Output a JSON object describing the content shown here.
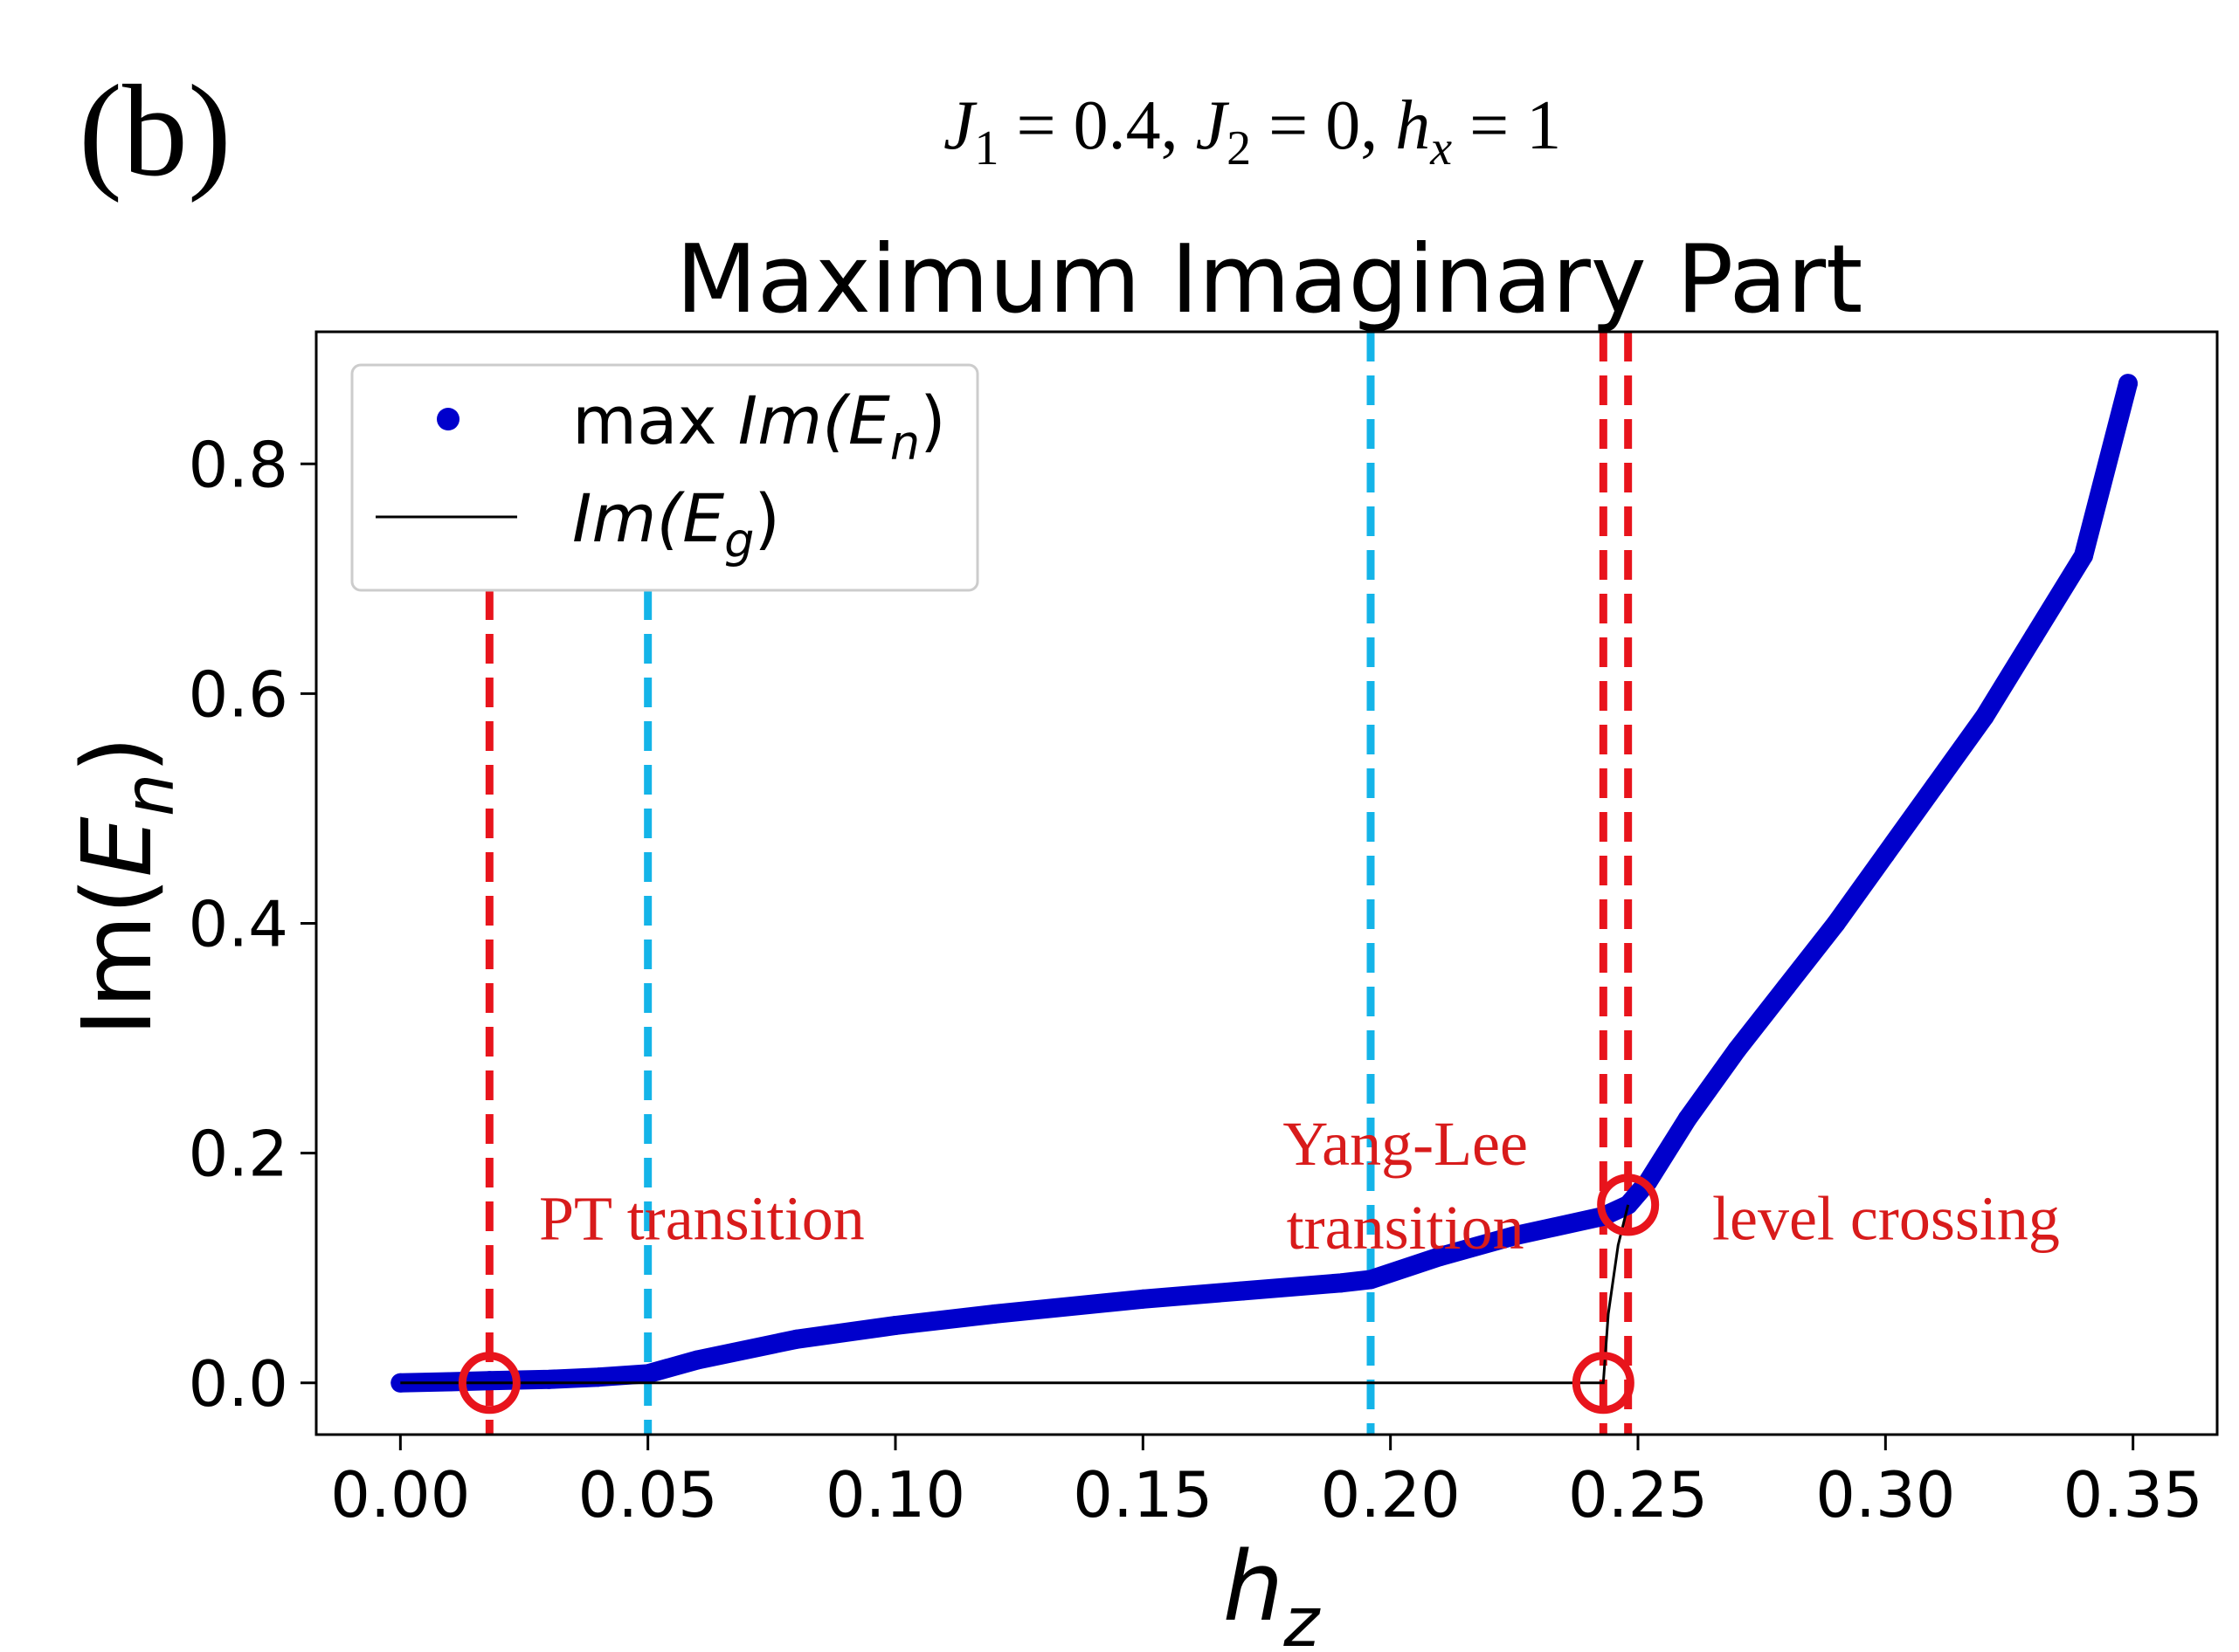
{
  "panel_label": "(b)",
  "params": {
    "j1": "J",
    "j1_sub": "1",
    "j1_val": " = 0.4, ",
    "j2": "J",
    "j2_sub": "2",
    "j2_val": " = 0, ",
    "hx": "h",
    "hx_sub": "x",
    "hx_val": " = 1"
  },
  "colors": {
    "series": "#0000cc",
    "line": "#000000",
    "red": "#e8141c",
    "cyan": "#14b4e8",
    "annotation": "#d81b1b"
  },
  "chart_data": {
    "type": "scatter",
    "title": "Maximum Imaginary Part",
    "xlabel": {
      "main": "h",
      "sub": "z"
    },
    "ylabel": {
      "main": "Im(",
      "letter": "E",
      "sub": "n",
      "close": ")"
    },
    "xlim": [
      -0.017,
      0.367
    ],
    "ylim": [
      -0.045,
      0.915
    ],
    "xticks": [
      0.0,
      0.05,
      0.1,
      0.15,
      0.2,
      0.25,
      0.3,
      0.35
    ],
    "xtick_labels": [
      "0.00",
      "0.05",
      "0.10",
      "0.15",
      "0.20",
      "0.25",
      "0.30",
      "0.35"
    ],
    "yticks": [
      0.0,
      0.2,
      0.4,
      0.6,
      0.8
    ],
    "ytick_labels": [
      "0.0",
      "0.2",
      "0.4",
      "0.6",
      "0.8"
    ],
    "grid": false,
    "legend_position": "upper-left",
    "legend": [
      {
        "marker": "dot",
        "text": "max ",
        "italic": "Im(",
        "letter": "E",
        "sub": "n",
        "close": ")"
      },
      {
        "marker": "line",
        "text": "",
        "italic": "Im(",
        "letter": "E",
        "sub": "g",
        "close": ")"
      }
    ],
    "series": [
      {
        "name": "max Im(E_n)",
        "x": [
          0.0,
          0.01,
          0.018,
          0.03,
          0.04,
          0.05,
          0.06,
          0.08,
          0.1,
          0.12,
          0.15,
          0.17,
          0.19,
          0.196,
          0.21,
          0.225,
          0.243,
          0.248,
          0.252,
          0.26,
          0.27,
          0.28,
          0.29,
          0.3,
          0.31,
          0.32,
          0.33,
          0.34,
          0.349
        ],
        "y": [
          0.0,
          0.001,
          0.002,
          0.003,
          0.005,
          0.008,
          0.02,
          0.038,
          0.05,
          0.06,
          0.073,
          0.08,
          0.087,
          0.09,
          0.11,
          0.128,
          0.145,
          0.155,
          0.175,
          0.23,
          0.29,
          0.345,
          0.4,
          0.46,
          0.52,
          0.58,
          0.65,
          0.72,
          0.87
        ]
      },
      {
        "name": "Im(E_g)",
        "x": [
          0.0,
          0.243,
          0.244,
          0.246,
          0.248
        ],
        "y": [
          0.0,
          0.0,
          0.06,
          0.12,
          0.155
        ]
      }
    ],
    "vlines": [
      {
        "x": 0.018,
        "color": "red",
        "y_top": 0.69
      },
      {
        "x": 0.05,
        "color": "cyan",
        "y_top": 0.69
      },
      {
        "x": 0.196,
        "color": "cyan",
        "y_top": 0.915
      },
      {
        "x": 0.243,
        "color": "red",
        "y_top": 0.915
      },
      {
        "x": 0.248,
        "color": "red",
        "y_top": 0.915
      }
    ],
    "circles": [
      {
        "x": 0.018,
        "y": 0.0
      },
      {
        "x": 0.243,
        "y": 0.0
      },
      {
        "x": 0.248,
        "y": 0.155
      }
    ],
    "annotations": [
      {
        "lines": [
          "PT transition"
        ],
        "x": 0.028,
        "y": 0.125,
        "anchor": "start"
      },
      {
        "lines": [
          "Yang-Lee",
          "transition"
        ],
        "x": 0.203,
        "y": 0.19,
        "anchor": "middle"
      },
      {
        "lines": [
          "level crossing"
        ],
        "x": 0.265,
        "y": 0.125,
        "anchor": "start"
      }
    ]
  }
}
